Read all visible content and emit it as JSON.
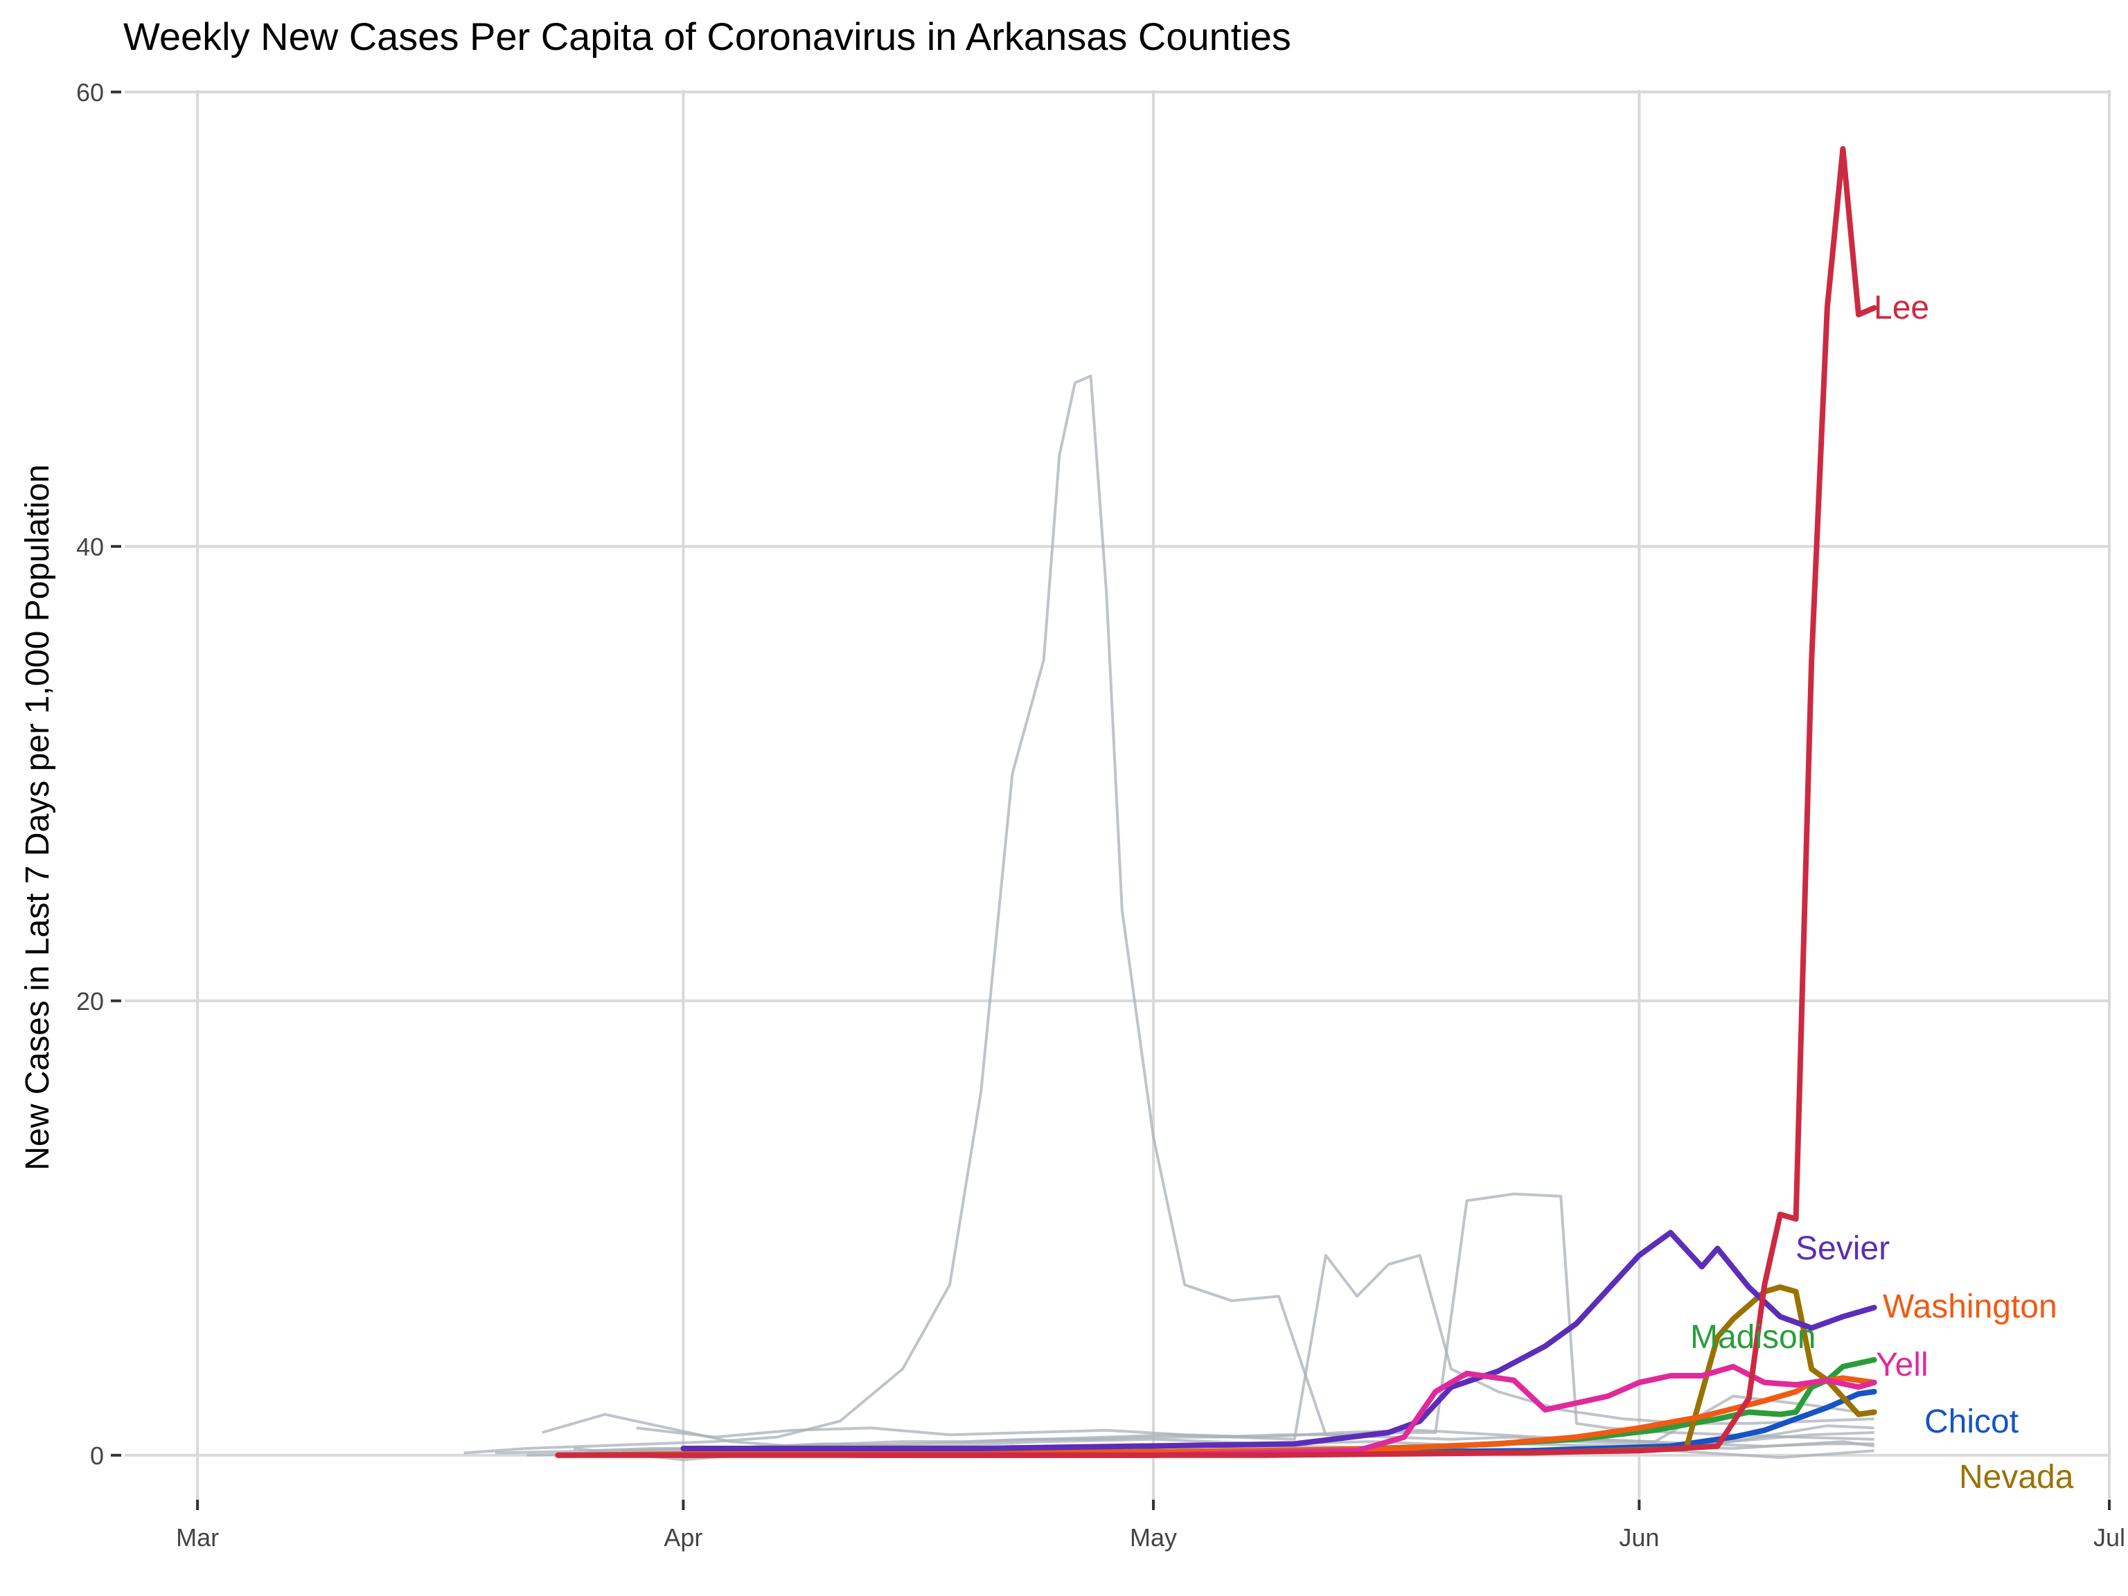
{
  "chart_data": {
    "type": "line",
    "title": "Weekly New Cases Per Capita of Coronavirus in Arkansas Counties",
    "ylabel": "New Cases in Last 7 Days per 1,000 Population",
    "xlabel": "",
    "x_ticks": [
      "Mar",
      "Apr",
      "May",
      "Jun",
      "Jul"
    ],
    "y_ticks": [
      0,
      20,
      40,
      60
    ],
    "xlim": [
      "2020-02-25",
      "2020-07-01"
    ],
    "ylim": [
      -1.5,
      61
    ],
    "grid": true,
    "legend": "none; highlighted series labeled at line ends",
    "background_series": [
      {
        "x": [
          "2020-03-18",
          "2020-03-22",
          "2020-03-26",
          "2020-03-30",
          "2020-04-03",
          "2020-04-07",
          "2020-04-11",
          "2020-04-15",
          "2020-04-18",
          "2020-04-20",
          "2020-04-22",
          "2020-04-24",
          "2020-04-25",
          "2020-04-26",
          "2020-04-27",
          "2020-04-28",
          "2020-04-29",
          "2020-05-01",
          "2020-05-03",
          "2020-05-06",
          "2020-05-09",
          "2020-05-12",
          "2020-05-16",
          "2020-05-20",
          "2020-05-24",
          "2020-05-28",
          "2020-06-01",
          "2020-06-05",
          "2020-06-09",
          "2020-06-13",
          "2020-06-16"
        ],
        "y": [
          0.1,
          0.3,
          0.4,
          0.5,
          0.6,
          0.8,
          1.5,
          3.8,
          7.5,
          16,
          30,
          35,
          44,
          47.2,
          47.5,
          38,
          24,
          14,
          7.5,
          6.8,
          7.0,
          0.9,
          0.8,
          0.7,
          0.8,
          0.6,
          0.5,
          0.5,
          0.4,
          0.5,
          0.5
        ]
      },
      {
        "x": [
          "2020-03-23",
          "2020-03-27",
          "2020-03-31",
          "2020-04-04",
          "2020-04-08",
          "2020-04-12",
          "2020-04-16",
          "2020-04-20",
          "2020-04-24",
          "2020-04-28",
          "2020-05-02",
          "2020-05-06",
          "2020-05-10",
          "2020-05-12",
          "2020-05-14",
          "2020-05-16",
          "2020-05-18",
          "2020-05-20",
          "2020-05-23",
          "2020-05-27",
          "2020-05-31",
          "2020-06-04",
          "2020-06-08",
          "2020-06-12",
          "2020-06-16"
        ],
        "y": [
          1.0,
          1.8,
          1.2,
          0.6,
          0.4,
          0.4,
          0.5,
          0.6,
          0.7,
          0.8,
          0.9,
          0.8,
          0.7,
          8.8,
          7.0,
          8.4,
          8.8,
          3.8,
          2.8,
          2.0,
          1.6,
          1.4,
          1.4,
          1.5,
          1.6
        ]
      },
      {
        "x": [
          "2020-03-26",
          "2020-03-30",
          "2020-04-03",
          "2020-04-07",
          "2020-04-11",
          "2020-04-15",
          "2020-04-19",
          "2020-04-23",
          "2020-04-27",
          "2020-05-01",
          "2020-05-05",
          "2020-05-09",
          "2020-05-13",
          "2020-05-17",
          "2020-05-19",
          "2020-05-21",
          "2020-05-24",
          "2020-05-27",
          "2020-05-28",
          "2020-05-30",
          "2020-06-03",
          "2020-06-07",
          "2020-06-11",
          "2020-06-16"
        ],
        "y": [
          0.2,
          0.3,
          0.3,
          0.4,
          0.5,
          0.6,
          0.6,
          0.7,
          0.7,
          0.8,
          0.8,
          0.9,
          0.9,
          1.0,
          1.0,
          11.2,
          11.5,
          11.4,
          1.4,
          1.2,
          1.0,
          0.9,
          0.8,
          0.7
        ]
      },
      {
        "x": [
          "2020-03-29",
          "2020-04-03",
          "2020-04-08",
          "2020-04-13",
          "2020-04-18",
          "2020-04-23",
          "2020-04-28",
          "2020-05-03",
          "2020-05-08",
          "2020-05-13",
          "2020-05-18",
          "2020-05-23",
          "2020-05-28",
          "2020-06-02",
          "2020-06-07",
          "2020-06-12",
          "2020-06-16"
        ],
        "y": [
          1.2,
          0.8,
          1.1,
          1.2,
          0.9,
          1.0,
          1.1,
          0.9,
          0.8,
          1.0,
          1.1,
          0.9,
          0.7,
          0.6,
          2.6,
          2.2,
          1.8
        ]
      },
      {
        "x": [
          "2020-03-20",
          "2020-03-27",
          "2020-04-03",
          "2020-04-10",
          "2020-04-17",
          "2020-04-24",
          "2020-05-01",
          "2020-05-08",
          "2020-05-15",
          "2020-05-22",
          "2020-05-29",
          "2020-06-05",
          "2020-06-12",
          "2020-06-16"
        ],
        "y": [
          0.1,
          0.2,
          0.3,
          0.5,
          0.4,
          0.6,
          0.7,
          0.5,
          0.6,
          0.4,
          0.7,
          0.5,
          0.9,
          1.0
        ]
      },
      {
        "x": [
          "2020-03-22",
          "2020-03-29",
          "2020-04-05",
          "2020-04-12",
          "2020-04-19",
          "2020-04-26",
          "2020-05-03",
          "2020-05-10",
          "2020-05-17",
          "2020-05-24",
          "2020-05-31",
          "2020-06-07",
          "2020-06-14",
          "2020-06-16"
        ],
        "y": [
          0.0,
          0.1,
          0.2,
          0.2,
          0.3,
          0.3,
          0.2,
          0.4,
          0.3,
          0.5,
          0.4,
          0.3,
          0.6,
          0.4
        ]
      },
      {
        "x": [
          "2020-03-25",
          "2020-04-01",
          "2020-04-08",
          "2020-04-15",
          "2020-04-22",
          "2020-04-29",
          "2020-05-06",
          "2020-05-13",
          "2020-05-20",
          "2020-05-27",
          "2020-06-03",
          "2020-06-10",
          "2020-06-16"
        ],
        "y": [
          0.3,
          -0.2,
          0.2,
          0.1,
          0.4,
          0.2,
          0.1,
          0.3,
          0.2,
          0.1,
          0.2,
          -0.1,
          0.2
        ]
      },
      {
        "x": [
          "2020-03-28",
          "2020-04-04",
          "2020-04-11",
          "2020-04-18",
          "2020-04-25",
          "2020-05-02",
          "2020-05-09",
          "2020-05-16",
          "2020-05-23",
          "2020-05-30",
          "2020-06-06",
          "2020-06-13",
          "2020-06-16"
        ],
        "y": [
          0.2,
          0.3,
          0.2,
          0.2,
          0.3,
          0.2,
          0.3,
          0.2,
          0.2,
          0.3,
          0.5,
          1.3,
          1.2
        ]
      }
    ],
    "series": [
      {
        "name": "Lee",
        "color": "#CC2A41",
        "x": [
          "2020-03-24",
          "2020-04-08",
          "2020-04-23",
          "2020-05-08",
          "2020-05-23",
          "2020-06-01",
          "2020-06-06",
          "2020-06-08",
          "2020-06-09",
          "2020-06-10",
          "2020-06-11",
          "2020-06-12",
          "2020-06-13",
          "2020-06-14",
          "2020-06-15",
          "2020-06-16"
        ],
        "y": [
          0,
          0,
          0,
          0,
          0.1,
          0.2,
          0.4,
          2.5,
          7.5,
          10.6,
          10.4,
          35,
          50.5,
          57.5,
          50.2,
          50.5
        ]
      },
      {
        "name": "Sevier",
        "color": "#5C2DB8",
        "x": [
          "2020-04-01",
          "2020-04-20",
          "2020-05-10",
          "2020-05-16",
          "2020-05-18",
          "2020-05-20",
          "2020-05-23",
          "2020-05-26",
          "2020-05-28",
          "2020-05-30",
          "2020-06-01",
          "2020-06-03",
          "2020-06-05",
          "2020-06-06",
          "2020-06-08",
          "2020-06-10",
          "2020-06-12",
          "2020-06-14",
          "2020-06-16"
        ],
        "y": [
          0.3,
          0.3,
          0.5,
          1.0,
          1.5,
          3.0,
          3.7,
          4.8,
          5.8,
          7.3,
          8.8,
          9.8,
          8.3,
          9.1,
          7.4,
          6.1,
          5.6,
          6.1,
          6.5
        ]
      },
      {
        "name": "Washington",
        "color": "#F05A14",
        "x": [
          "2020-03-24",
          "2020-04-08",
          "2020-04-23",
          "2020-05-08",
          "2020-05-16",
          "2020-05-23",
          "2020-05-28",
          "2020-06-01",
          "2020-06-05",
          "2020-06-09",
          "2020-06-11",
          "2020-06-12",
          "2020-06-14",
          "2020-06-16"
        ],
        "y": [
          0,
          0.1,
          0.1,
          0.2,
          0.3,
          0.5,
          0.8,
          1.2,
          1.7,
          2.4,
          2.8,
          3.2,
          3.4,
          3.2
        ]
      },
      {
        "name": "Madison",
        "color": "#2A9D3A",
        "x": [
          "2020-04-01",
          "2020-04-20",
          "2020-05-10",
          "2020-05-20",
          "2020-05-28",
          "2020-06-02",
          "2020-06-06",
          "2020-06-08",
          "2020-06-10",
          "2020-06-11",
          "2020-06-12",
          "2020-06-13",
          "2020-06-14",
          "2020-06-16"
        ],
        "y": [
          0,
          0.1,
          0.2,
          0.4,
          0.7,
          1.1,
          1.6,
          1.9,
          1.8,
          1.9,
          3.0,
          3.3,
          3.9,
          4.2
        ]
      },
      {
        "name": "Yell",
        "color": "#E02A9A",
        "x": [
          "2020-04-12",
          "2020-05-01",
          "2020-05-14",
          "2020-05-17",
          "2020-05-19",
          "2020-05-21",
          "2020-05-24",
          "2020-05-26",
          "2020-05-28",
          "2020-05-30",
          "2020-06-01",
          "2020-06-03",
          "2020-06-05",
          "2020-06-07",
          "2020-06-09",
          "2020-06-11",
          "2020-06-13",
          "2020-06-15",
          "2020-06-16"
        ],
        "y": [
          0,
          0,
          0.2,
          0.8,
          2.8,
          3.6,
          3.3,
          2.0,
          2.3,
          2.6,
          3.2,
          3.5,
          3.5,
          3.9,
          3.2,
          3.1,
          3.3,
          3.0,
          3.2
        ]
      },
      {
        "name": "Chicot",
        "color": "#1653C7",
        "x": [
          "2020-04-01",
          "2020-04-20",
          "2020-05-10",
          "2020-05-25",
          "2020-06-03",
          "2020-06-07",
          "2020-06-09",
          "2020-06-11",
          "2020-06-13",
          "2020-06-15",
          "2020-06-16"
        ],
        "y": [
          0,
          0.1,
          0.1,
          0.2,
          0.4,
          0.8,
          1.1,
          1.6,
          2.1,
          2.7,
          2.8
        ]
      },
      {
        "name": "Nevada",
        "color": "#9A7200",
        "x": [
          "2020-04-01",
          "2020-04-20",
          "2020-05-10",
          "2020-05-25",
          "2020-06-04",
          "2020-06-06",
          "2020-06-07",
          "2020-06-09",
          "2020-06-10",
          "2020-06-11",
          "2020-06-12",
          "2020-06-13",
          "2020-06-15",
          "2020-06-16"
        ],
        "y": [
          0,
          0.1,
          0.1,
          0.1,
          0.3,
          5.2,
          6.0,
          7.2,
          7.4,
          7.2,
          3.8,
          3.3,
          1.8,
          1.9
        ]
      }
    ],
    "series_labels": [
      "Lee",
      "Sevier",
      "Washington",
      "Madison",
      "Yell",
      "Chicot",
      "Nevada"
    ]
  }
}
